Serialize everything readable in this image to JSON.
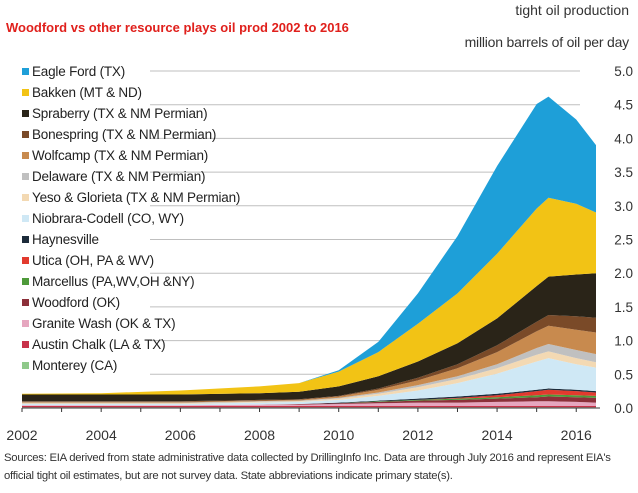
{
  "header": {
    "title": "Woodford vs other resource plays oil prod 2002 to 2016",
    "unit_line1": "tight oil production",
    "unit_line2": "million barrels of oil per day"
  },
  "source_note": "Sources: EIA derived from state administrative data collected by DrillingInfo Inc. Data are through July 2016 and represent EIA's official tight oil estimates, but are not survey data. State abbreviations indicate primary state(s).",
  "colors": {
    "title": "#e0201c",
    "gridline": "#bfbfbf",
    "axis": "#333333"
  },
  "chart_data": {
    "type": "area",
    "stacked": true,
    "title": "Woodford vs other resource plays oil prod 2002 to 2016",
    "ylabel": "tight oil production, million barrels of oil per day",
    "xlabel": "",
    "xlim": [
      2002,
      2016.6
    ],
    "ylim": [
      0,
      5.0
    ],
    "x_ticks": [
      2002,
      2004,
      2006,
      2008,
      2010,
      2012,
      2014,
      2016
    ],
    "y_ticks": [
      0.0,
      0.5,
      1.0,
      1.5,
      2.0,
      2.5,
      3.0,
      3.5,
      4.0,
      4.5,
      5.0
    ],
    "y_tick_labels": [
      "0.0",
      "0.5",
      "1.0",
      "1.5",
      "2.0",
      "2.5",
      "3.0",
      "3.5",
      "4.0",
      "4.5",
      "5.0"
    ],
    "grid": true,
    "legend_position": "top-left",
    "x": [
      2002,
      2004,
      2006,
      2008,
      2009,
      2010,
      2011,
      2012,
      2013,
      2014,
      2015,
      2015.3,
      2016,
      2016.5
    ],
    "series": [
      {
        "name": "Monterey (CA)",
        "color": "#8fc98a",
        "values": [
          0.01,
          0.01,
          0.01,
          0.01,
          0.01,
          0.01,
          0.01,
          0.01,
          0.01,
          0.01,
          0.01,
          0.01,
          0.01,
          0.01
        ]
      },
      {
        "name": "Austin Chalk (LA & TX)",
        "color": "#c8324a",
        "values": [
          0.02,
          0.02,
          0.02,
          0.02,
          0.02,
          0.02,
          0.02,
          0.02,
          0.02,
          0.02,
          0.02,
          0.02,
          0.02,
          0.02
        ]
      },
      {
        "name": "Granite Wash (OK & TX)",
        "color": "#e6a6bf",
        "values": [
          0.01,
          0.01,
          0.01,
          0.02,
          0.02,
          0.03,
          0.04,
          0.05,
          0.05,
          0.06,
          0.07,
          0.07,
          0.06,
          0.05
        ]
      },
      {
        "name": "Woodford (OK)",
        "color": "#8c2f39",
        "values": [
          0.0,
          0.0,
          0.0,
          0.0,
          0.01,
          0.01,
          0.02,
          0.03,
          0.04,
          0.05,
          0.06,
          0.07,
          0.07,
          0.07
        ]
      },
      {
        "name": "Marcellus (PA,WV,OH &NY)",
        "color": "#4e9a3a",
        "values": [
          0.0,
          0.0,
          0.0,
          0.0,
          0.0,
          0.0,
          0.01,
          0.01,
          0.02,
          0.02,
          0.03,
          0.03,
          0.03,
          0.03
        ]
      },
      {
        "name": "Utica (OH, PA & WV)",
        "color": "#e23a2e",
        "values": [
          0.0,
          0.0,
          0.0,
          0.0,
          0.0,
          0.0,
          0.0,
          0.0,
          0.01,
          0.03,
          0.06,
          0.07,
          0.06,
          0.05
        ]
      },
      {
        "name": "Haynesville",
        "color": "#1c2b3a",
        "values": [
          0.0,
          0.0,
          0.0,
          0.0,
          0.0,
          0.01,
          0.01,
          0.02,
          0.02,
          0.02,
          0.02,
          0.02,
          0.02,
          0.02
        ]
      },
      {
        "name": "Niobrara-Codell (CO, WY)",
        "color": "#cfe8f5",
        "values": [
          0.02,
          0.02,
          0.02,
          0.03,
          0.03,
          0.04,
          0.07,
          0.12,
          0.2,
          0.3,
          0.42,
          0.45,
          0.38,
          0.35
        ]
      },
      {
        "name": "Yeso & Glorieta (TX & NM Permian)",
        "color": "#f3d9b3",
        "values": [
          0.01,
          0.01,
          0.01,
          0.01,
          0.01,
          0.02,
          0.03,
          0.05,
          0.06,
          0.08,
          0.1,
          0.1,
          0.09,
          0.08
        ]
      },
      {
        "name": "Delaware (TX & NM Permian)",
        "color": "#c0c0c0",
        "values": [
          0.01,
          0.01,
          0.01,
          0.01,
          0.01,
          0.01,
          0.02,
          0.03,
          0.04,
          0.06,
          0.1,
          0.11,
          0.12,
          0.12
        ]
      },
      {
        "name": "Wolfcamp (TX & NM Permian)",
        "color": "#c88a4e",
        "values": [
          0.01,
          0.01,
          0.01,
          0.01,
          0.01,
          0.02,
          0.04,
          0.07,
          0.12,
          0.18,
          0.25,
          0.27,
          0.3,
          0.32
        ]
      },
      {
        "name": "Bonespring (TX & NM Permian)",
        "color": "#7a4a28",
        "values": [
          0.01,
          0.01,
          0.01,
          0.01,
          0.01,
          0.01,
          0.02,
          0.04,
          0.06,
          0.1,
          0.14,
          0.16,
          0.2,
          0.22
        ]
      },
      {
        "name": "Spraberry (TX & NM Permian)",
        "color": "#2a2418",
        "values": [
          0.1,
          0.1,
          0.1,
          0.1,
          0.11,
          0.14,
          0.18,
          0.24,
          0.31,
          0.4,
          0.53,
          0.57,
          0.62,
          0.66
        ]
      },
      {
        "name": "Bakken (MT & ND)",
        "color": "#f2c315",
        "values": [
          0.01,
          0.02,
          0.06,
          0.1,
          0.13,
          0.22,
          0.36,
          0.56,
          0.74,
          0.96,
          1.15,
          1.17,
          1.05,
          0.9
        ]
      },
      {
        "name": "Eagle Ford (TX)",
        "color": "#1e9fd8",
        "values": [
          0.0,
          0.0,
          0.0,
          0.0,
          0.0,
          0.02,
          0.15,
          0.45,
          0.85,
          1.3,
          1.55,
          1.5,
          1.25,
          1.0
        ]
      }
    ]
  }
}
